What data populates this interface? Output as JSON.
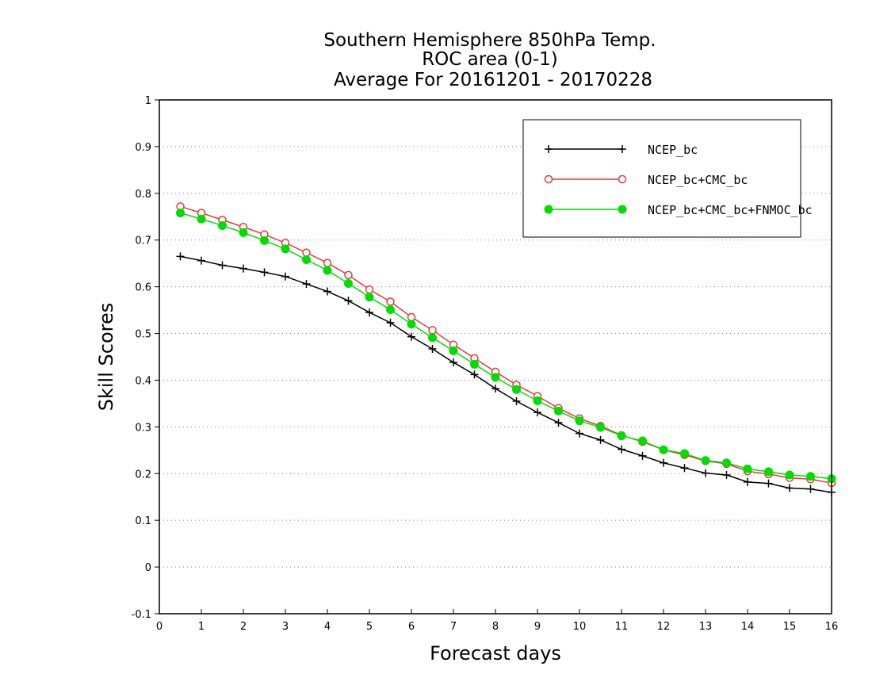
{
  "chart_data": {
    "type": "line",
    "title_lines": [
      "Southern Hemisphere 850hPa Temp.",
      "ROC area (0-1)",
      "Average For 20161201 - 20170228"
    ],
    "xlabel": "Forecast days",
    "ylabel": "Skill Scores",
    "xlim": [
      0,
      16
    ],
    "ylim": [
      -0.1,
      1
    ],
    "xticks": [
      "0",
      "1",
      "2",
      "3",
      "4",
      "5",
      "6",
      "7",
      "8",
      "9",
      "10",
      "11",
      "12",
      "13",
      "14",
      "15",
      "16"
    ],
    "yticks": [
      "-0.1",
      "0",
      "0.1",
      "0.2",
      "0.3",
      "0.4",
      "0.5",
      "0.6",
      "0.7",
      "0.8",
      "0.9",
      "1"
    ],
    "grid": true,
    "legend_position": "top-right",
    "x": [
      0.5,
      1,
      1.5,
      2,
      2.5,
      3,
      3.5,
      4,
      4.5,
      5,
      5.5,
      6,
      6.5,
      7,
      7.5,
      8,
      8.5,
      9,
      9.5,
      10,
      10.5,
      11,
      11.5,
      12,
      12.5,
      13,
      13.5,
      14,
      14.5,
      15,
      15.5,
      16
    ],
    "series": [
      {
        "name": "NCEP_bc",
        "color": "#000000",
        "marker": "plus",
        "values": [
          0.665,
          0.656,
          0.646,
          0.639,
          0.631,
          0.622,
          0.606,
          0.59,
          0.57,
          0.545,
          0.523,
          0.493,
          0.467,
          0.438,
          0.412,
          0.382,
          0.355,
          0.331,
          0.309,
          0.286,
          0.272,
          0.252,
          0.238,
          0.223,
          0.212,
          0.201,
          0.197,
          0.182,
          0.179,
          0.169,
          0.167,
          0.16
        ]
      },
      {
        "name": "NCEP_bc+CMC_bc",
        "color": "#e8383b",
        "marker": "open-circle",
        "values": [
          0.772,
          0.758,
          0.743,
          0.728,
          0.712,
          0.694,
          0.673,
          0.651,
          0.625,
          0.594,
          0.568,
          0.535,
          0.507,
          0.476,
          0.447,
          0.418,
          0.39,
          0.366,
          0.34,
          0.318,
          0.302,
          0.282,
          0.268,
          0.251,
          0.24,
          0.227,
          0.221,
          0.205,
          0.199,
          0.191,
          0.188,
          0.18
        ]
      },
      {
        "name": "NCEP_bc+CMC_bc+FNMOC_bc",
        "color": "#00dd00",
        "marker": "filled-circle",
        "values": [
          0.758,
          0.745,
          0.731,
          0.716,
          0.699,
          0.681,
          0.658,
          0.635,
          0.607,
          0.578,
          0.551,
          0.52,
          0.491,
          0.463,
          0.434,
          0.406,
          0.38,
          0.356,
          0.334,
          0.313,
          0.299,
          0.281,
          0.27,
          0.251,
          0.243,
          0.228,
          0.223,
          0.21,
          0.204,
          0.197,
          0.194,
          0.189
        ]
      }
    ]
  }
}
